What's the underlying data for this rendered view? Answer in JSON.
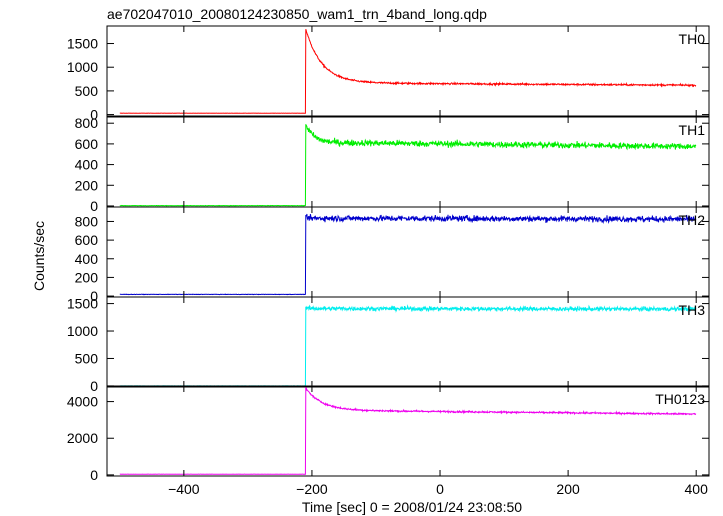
{
  "chart_data": {
    "type": "line",
    "title": "ae702047010_20080124230850_wam1_trn_4band_long.qdp",
    "xlabel": "Time [sec] 0 = 2008/01/24 23:08:50",
    "ylabel": "Counts/sec",
    "xlim": [
      -520,
      420
    ],
    "x_ticks": [
      -400,
      -200,
      0,
      200,
      400
    ],
    "x_tick_labels": [
      "−400",
      "−200",
      "0",
      "200",
      "400"
    ],
    "grid": false,
    "trigger_time": -210,
    "panels": [
      {
        "name": "TH0",
        "color": "#ff0000",
        "ylim": [
          -30,
          1870
        ],
        "yticks": [
          0,
          500,
          1000,
          1500
        ],
        "ytick_labels": [
          "0",
          "500",
          "1000",
          "1500"
        ],
        "baseline": 30,
        "peak": 1820,
        "plateau": 670,
        "end_level": 620,
        "decay_tau": 25,
        "noise": 18
      },
      {
        "name": "TH1",
        "color": "#00ee00",
        "ylim": [
          -10,
          860
        ],
        "yticks": [
          0,
          200,
          400,
          600,
          800
        ],
        "ytick_labels": [
          "0",
          "200",
          "400",
          "600",
          "800"
        ],
        "baseline": 3,
        "peak": 800,
        "plateau": 615,
        "end_level": 575,
        "decay_tau": 12,
        "noise": 30
      },
      {
        "name": "TH2",
        "color": "#0000cc",
        "ylim": [
          -10,
          955
        ],
        "yticks": [
          0,
          200,
          400,
          600,
          800
        ],
        "ytick_labels": [
          "0",
          "200",
          "400",
          "600",
          "800"
        ],
        "baseline": 18,
        "peak": 840,
        "plateau": 835,
        "end_level": 825,
        "decay_tau": 5,
        "noise": 32
      },
      {
        "name": "TH3",
        "color": "#00eeee",
        "ylim": [
          -20,
          1620
        ],
        "yticks": [
          0,
          500,
          1000,
          1500
        ],
        "ytick_labels": [
          "0",
          "500",
          "1000",
          "1500"
        ],
        "baseline": 0,
        "peak": 1420,
        "plateau": 1410,
        "end_level": 1400,
        "decay_tau": 5,
        "noise": 38
      },
      {
        "name": "TH0123",
        "color": "#ee00ee",
        "ylim": [
          -60,
          4850
        ],
        "yticks": [
          0,
          2000,
          4000
        ],
        "ytick_labels": [
          "0",
          "2000",
          "4000"
        ],
        "baseline": 40,
        "peak": 4750,
        "plateau": 3530,
        "end_level": 3320,
        "decay_tau": 25,
        "noise": 45
      }
    ]
  }
}
